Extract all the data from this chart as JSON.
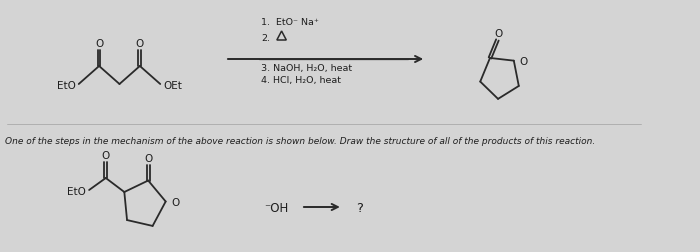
{
  "bg_color": "#d4d4d4",
  "line_color": "#2a2a2a",
  "text_color": "#1e1e1e",
  "fs_label": 7.5,
  "fs_cond": 6.8,
  "fs_text": 6.5,
  "cond1": "1.  EtO⁻ Na⁺",
  "cond3": "3. NaOH, H₂O, heat",
  "cond4": "4. HCl, H₂O, heat",
  "bottom_text": "One of the steps in the mechanism of the above reaction is shown below. Draw the structure of all of the products of this reaction.",
  "nuc": "⁻OH",
  "qmark": "?"
}
